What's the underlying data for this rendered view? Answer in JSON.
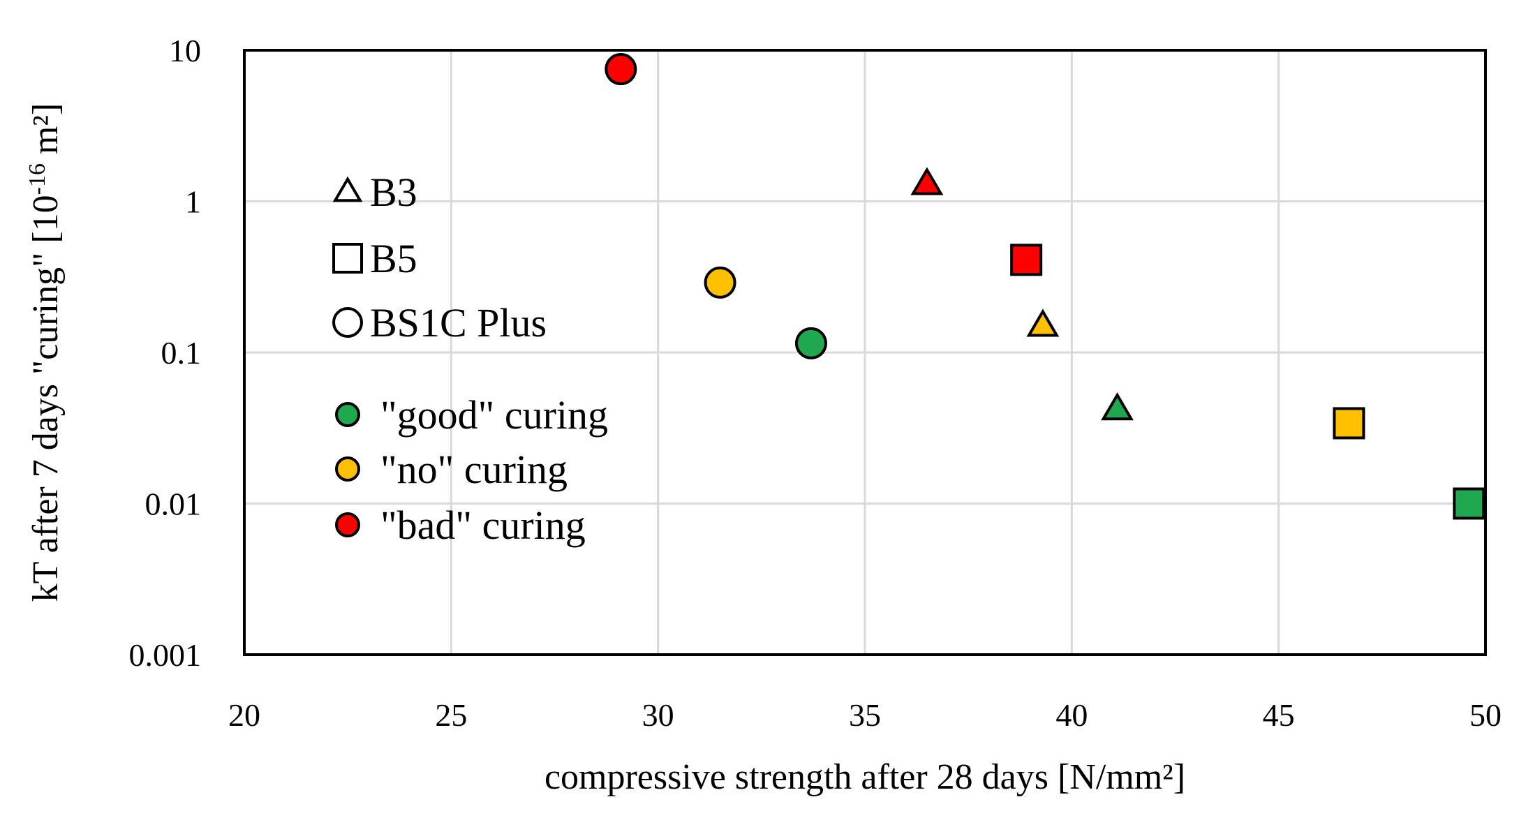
{
  "chart_data": {
    "type": "scatter",
    "title": "",
    "xlabel": "compressive strength after 28 days [N/mm²]",
    "ylabel": {
      "main": "kT after 7 days \"curing\" [10",
      "sup": "-16",
      "tail": " m²]"
    },
    "xlim": [
      20,
      50
    ],
    "ylim": [
      0.001,
      10
    ],
    "yscale": "log",
    "grid": true,
    "x_ticks": [
      "20",
      "25",
      "30",
      "35",
      "40",
      "45",
      "50"
    ],
    "y_ticks": [
      "0.001",
      "0.01",
      "0.1",
      "1",
      "10"
    ],
    "shape_legend": [
      {
        "shape": "triangle",
        "label": "B3"
      },
      {
        "shape": "square",
        "label": "B5"
      },
      {
        "shape": "circle",
        "label": "BS1C Plus"
      }
    ],
    "color_legend": [
      {
        "key": "good",
        "label": "\"good\" curing",
        "color": "#1fa84f"
      },
      {
        "key": "no",
        "label": "\"no\" curing",
        "color": "#ffc000"
      },
      {
        "key": "bad",
        "label": "\"bad\" curing",
        "color": "#ff0000"
      }
    ],
    "points": [
      {
        "name": "BS1C Plus bad curing",
        "shape": "circle",
        "curing": "bad",
        "x": 29.1,
        "y": 7.5
      },
      {
        "name": "BS1C Plus no curing",
        "shape": "circle",
        "curing": "no",
        "x": 31.5,
        "y": 0.29
      },
      {
        "name": "BS1C Plus good curing",
        "shape": "circle",
        "curing": "good",
        "x": 33.7,
        "y": 0.115
      },
      {
        "name": "B3 bad curing",
        "shape": "triangle",
        "curing": "bad",
        "x": 36.5,
        "y": 1.3
      },
      {
        "name": "B3 no curing",
        "shape": "triangle",
        "curing": "no",
        "x": 39.3,
        "y": 0.15
      },
      {
        "name": "B3 good curing",
        "shape": "triangle",
        "curing": "good",
        "x": 41.1,
        "y": 0.042
      },
      {
        "name": "B5 bad curing",
        "shape": "square",
        "curing": "bad",
        "x": 38.9,
        "y": 0.41
      },
      {
        "name": "B5 no curing",
        "shape": "square",
        "curing": "no",
        "x": 46.7,
        "y": 0.034
      },
      {
        "name": "B5 good curing",
        "shape": "square",
        "curing": "good",
        "x": 49.6,
        "y": 0.01
      }
    ]
  }
}
